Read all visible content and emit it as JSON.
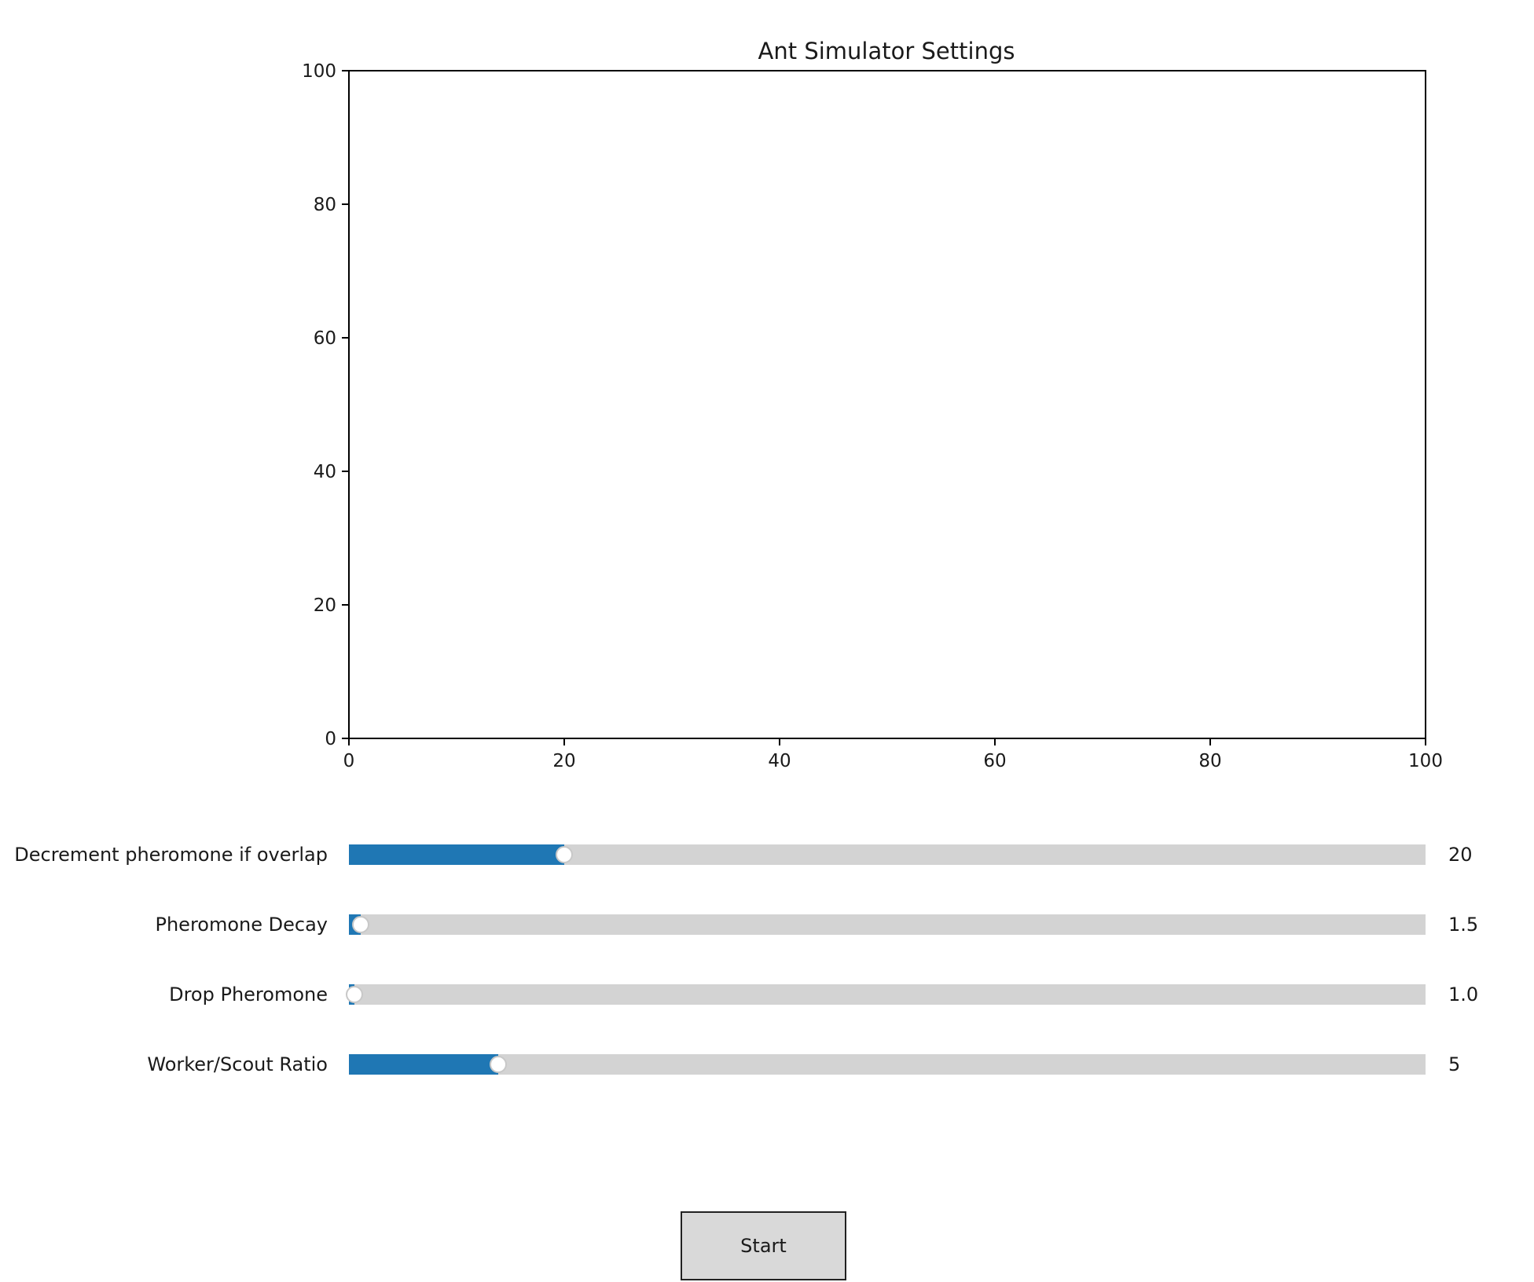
{
  "plot": {
    "title": "Ant Simulator Settings"
  },
  "chart_data": {
    "type": "scatter",
    "title": "Ant Simulator Settings",
    "xlabel": "",
    "ylabel": "",
    "xlim": [
      0,
      100
    ],
    "ylim": [
      0,
      100
    ],
    "xticks": [
      "0",
      "20",
      "40",
      "60",
      "80",
      "100"
    ],
    "yticks": [
      "0",
      "20",
      "40",
      "60",
      "80",
      "100"
    ],
    "series": [],
    "grid": false
  },
  "sliders": [
    {
      "label": "Decrement pheromone if overlap",
      "value_text": "20",
      "fraction": 0.2
    },
    {
      "label": "Pheromone Decay",
      "value_text": "1.5",
      "fraction": 0.011
    },
    {
      "label": "Drop Pheromone",
      "value_text": "1.0",
      "fraction": 0.005
    },
    {
      "label": "Worker/Scout Ratio",
      "value_text": "5",
      "fraction": 0.139
    }
  ],
  "colors": {
    "slider_fill": "#1f77b4",
    "slider_track": "#d3d3d3",
    "button_bg": "#d9d9d9"
  },
  "start_button": {
    "label": "Start"
  }
}
